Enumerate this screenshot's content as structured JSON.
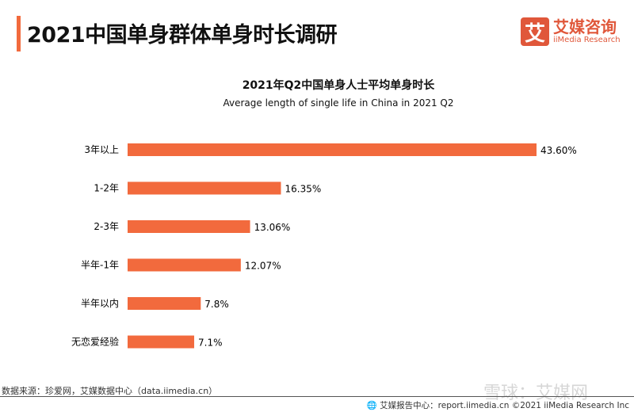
{
  "header": {
    "title": "2021中国单身群体单身时长调研",
    "logo_mark": "艾",
    "logo_cn": "艾媒咨询",
    "logo_en": "iiMedia Research"
  },
  "chart_data": {
    "type": "bar",
    "orientation": "horizontal",
    "title": "2021年Q2中国单身人士平均单身时长",
    "subtitle": "Average length of single life in China in 2021 Q2",
    "categories": [
      "3年以上",
      "1-2年",
      "2-3年",
      "半年-1年",
      "半年以内",
      "无恋爱经验"
    ],
    "values": [
      43.6,
      16.35,
      13.06,
      12.07,
      7.8,
      7.1
    ],
    "labels": [
      "43.60%",
      "16.35%",
      "13.06%",
      "12.07%",
      "7.8%",
      "7.1%"
    ],
    "unit": "%",
    "color": "#f26a3d",
    "grid": false
  },
  "footer": {
    "source": "数据来源：珍爱网，艾媒数据中心（data.iimedia.cn）",
    "report": "艾媒报告中心：report.iimedia.cn  ©2021  iiMedia Research  Inc",
    "watermark": "雪球：艾媒网"
  }
}
